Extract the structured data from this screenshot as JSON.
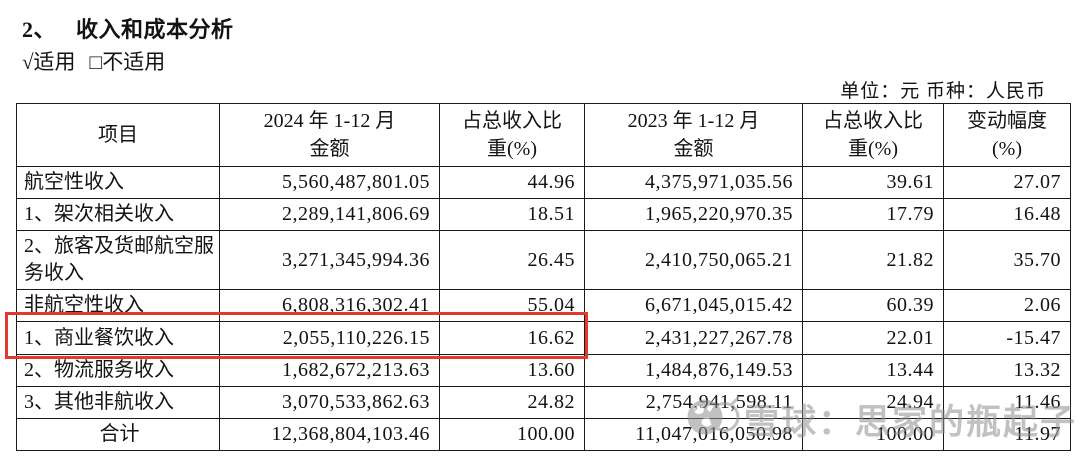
{
  "header": {
    "section_number": "2、",
    "section_title": "收入和成本分析",
    "applicable": "√适用",
    "not_applicable": "□不适用",
    "unit_note": "单位：元  币种：人民币"
  },
  "table": {
    "headers": [
      "项目",
      "2024 年 1-12 月\n金额",
      "占总收入比\n重(%)",
      "2023 年 1-12 月\n金额",
      "占总收入比\n重(%)",
      "变动幅度\n(%)"
    ],
    "rows": [
      {
        "item": "航空性收入",
        "amount_2024": "5,560,487,801.05",
        "pct_2024": "44.96",
        "amount_2023": "4,375,971,035.56",
        "pct_2023": "39.61",
        "change": "27.07"
      },
      {
        "item": "1、架次相关收入",
        "amount_2024": "2,289,141,806.69",
        "pct_2024": "18.51",
        "amount_2023": "1,965,220,970.35",
        "pct_2023": "17.79",
        "change": "16.48"
      },
      {
        "item": "2、旅客及货邮航空服务收入",
        "amount_2024": "3,271,345,994.36",
        "pct_2024": "26.45",
        "amount_2023": "2,410,750,065.21",
        "pct_2023": "21.82",
        "change": "35.70"
      },
      {
        "item": "非航空性收入",
        "amount_2024": "6,808,316,302.41",
        "pct_2024": "55.04",
        "amount_2023": "6,671,045,015.42",
        "pct_2023": "60.39",
        "change": "2.06"
      },
      {
        "item": "1、商业餐饮收入",
        "amount_2024": "2,055,110,226.15",
        "pct_2024": "16.62",
        "amount_2023": "2,431,227,267.78",
        "pct_2023": "22.01",
        "change": "-15.47"
      },
      {
        "item": "2、物流服务收入",
        "amount_2024": "1,682,672,213.63",
        "pct_2024": "13.60",
        "amount_2023": "1,484,876,149.53",
        "pct_2023": "13.44",
        "change": "13.32"
      },
      {
        "item": "3、其他非航收入",
        "amount_2024": "3,070,533,862.63",
        "pct_2024": "24.82",
        "amount_2023": "2,754,941,598.11",
        "pct_2023": "24.94",
        "change": "11.46"
      },
      {
        "item": "合计",
        "amount_2024": "12,368,804,103.46",
        "pct_2024": "100.00",
        "amount_2023": "11,047,016,050.98",
        "pct_2023": "100.00",
        "change": "11.97"
      }
    ],
    "highlighted_row_item": "1、商业餐饮收入",
    "highlighted_columns": [
      "项目",
      "2024 年 1-12 月金额",
      "占总收入比重(%)"
    ]
  },
  "watermark": {
    "text": "雪球：思家的瓶起子",
    "icon": "xueqiu-snowball-logo"
  },
  "colors": {
    "highlight_red": "#e6382e",
    "watermark_gray": "#8f8f8f",
    "table_border": "#1a1a1a"
  }
}
